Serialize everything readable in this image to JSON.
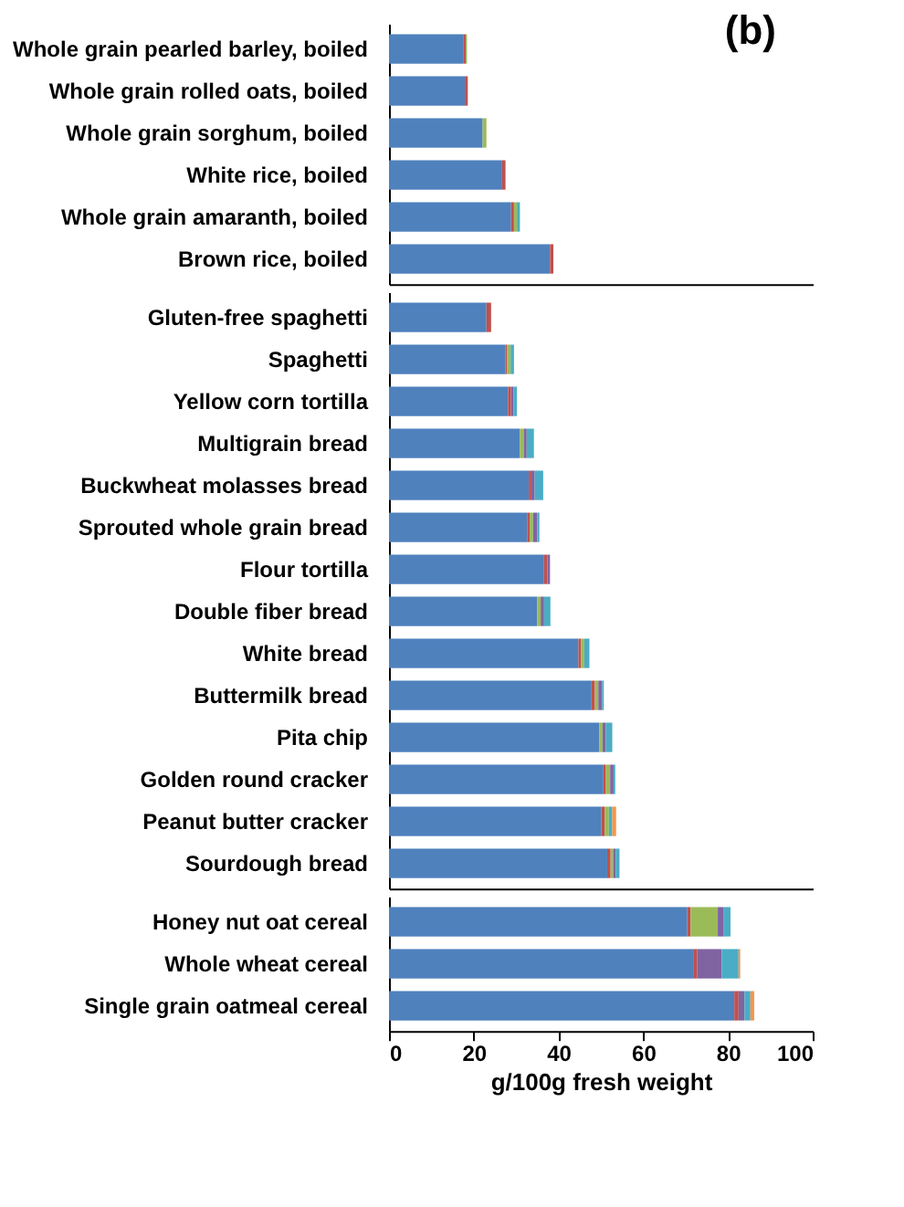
{
  "chart_data": [
    {
      "type": "bar",
      "orientation": "horizontal",
      "stacked": true,
      "title": "(b)",
      "tick_labels": "y",
      "xlim": [
        0,
        100
      ],
      "grid": false,
      "legend": false,
      "categories": [
        "Whole grain pearled barley, boiled",
        "Whole grain rolled oats, boiled",
        "Whole grain sorghum, boiled",
        "White rice, boiled",
        "Whole grain amaranth, boiled",
        "Brown rice, boiled"
      ],
      "series": [
        {
          "color": "#4f81bd",
          "values": [
            17.5,
            17.9,
            22.1,
            26.7,
            28.8,
            38.0
          ]
        },
        {
          "color": "#c0504d",
          "values": [
            0.6,
            0.7,
            null,
            0.8,
            0.7,
            0.8
          ]
        },
        {
          "color": "#9bbb59",
          "values": [
            0.3,
            null,
            0.9,
            null,
            0.7,
            null
          ]
        },
        {
          "color": "#4bacc6",
          "values": [
            null,
            null,
            null,
            null,
            0.7,
            null
          ]
        }
      ]
    },
    {
      "type": "bar",
      "orientation": "horizontal",
      "stacked": true,
      "tick_labels": "y",
      "xlim": [
        0,
        100
      ],
      "grid": false,
      "legend": false,
      "categories": [
        "Gluten-free spaghetti",
        "Spaghetti",
        "Yellow corn tortilla",
        "Multigrain bread",
        "Buckwheat molasses bread",
        "Sprouted whole grain bread",
        "Flour tortilla",
        "Double fiber bread",
        "White bread",
        "Buttermilk bread",
        "Pita chip",
        "Golden round cracker",
        "Peanut butter cracker",
        "Sourdough bread"
      ],
      "series": [
        {
          "color": "#4f81bd",
          "values": [
            23.0,
            27.5,
            28.1,
            30.9,
            33.0,
            32.6,
            36.6,
            35.0,
            44.7,
            47.8,
            49.6,
            50.6,
            50.1,
            51.5
          ]
        },
        {
          "color": "#c0504d",
          "values": [
            1.1,
            0.4,
            0.7,
            null,
            0.6,
            0.6,
            0.8,
            null,
            0.6,
            0.8,
            null,
            0.6,
            0.8,
            0.8
          ]
        },
        {
          "color": "#9bbb59",
          "values": [
            null,
            0.8,
            null,
            0.9,
            null,
            0.8,
            null,
            0.8,
            0.8,
            0.8,
            0.8,
            1.0,
            1.0,
            0.6
          ]
        },
        {
          "color": "#8064a2",
          "values": [
            null,
            null,
            0.6,
            0.7,
            0.8,
            1.0,
            0.6,
            0.8,
            null,
            0.9,
            0.8,
            0.8,
            null,
            0.6
          ]
        },
        {
          "color": "#4bacc6",
          "values": [
            null,
            0.8,
            0.8,
            1.7,
            2.0,
            0.5,
            null,
            1.5,
            1.2,
            0.4,
            1.5,
            0.4,
            0.8,
            0.9
          ]
        },
        {
          "color": "#f79646",
          "values": [
            null,
            null,
            null,
            null,
            null,
            null,
            null,
            null,
            null,
            null,
            null,
            null,
            0.9,
            null
          ]
        }
      ]
    },
    {
      "type": "bar",
      "orientation": "horizontal",
      "stacked": true,
      "xlabel": "g/100g  fresh weight",
      "xlim": [
        0,
        100
      ],
      "xticks": [
        0,
        20,
        40,
        60,
        80,
        100
      ],
      "grid": false,
      "legend": false,
      "categories": [
        "Honey nut oat cereal",
        "Whole wheat cereal",
        "Single grain oatmeal cereal"
      ],
      "series": [
        {
          "color": "#4f81bd",
          "values": [
            70.4,
            71.8,
            81.5
          ]
        },
        {
          "color": "#c0504d",
          "values": [
            0.8,
            0.9,
            1.0
          ]
        },
        {
          "color": "#9bbb59",
          "values": [
            6.4,
            null,
            null
          ]
        },
        {
          "color": "#8064a2",
          "values": [
            1.3,
            5.8,
            1.4
          ]
        },
        {
          "color": "#4bacc6",
          "values": [
            1.7,
            4.0,
            1.4
          ]
        },
        {
          "color": "#f79646",
          "values": [
            null,
            0.4,
            0.9
          ]
        }
      ]
    }
  ]
}
